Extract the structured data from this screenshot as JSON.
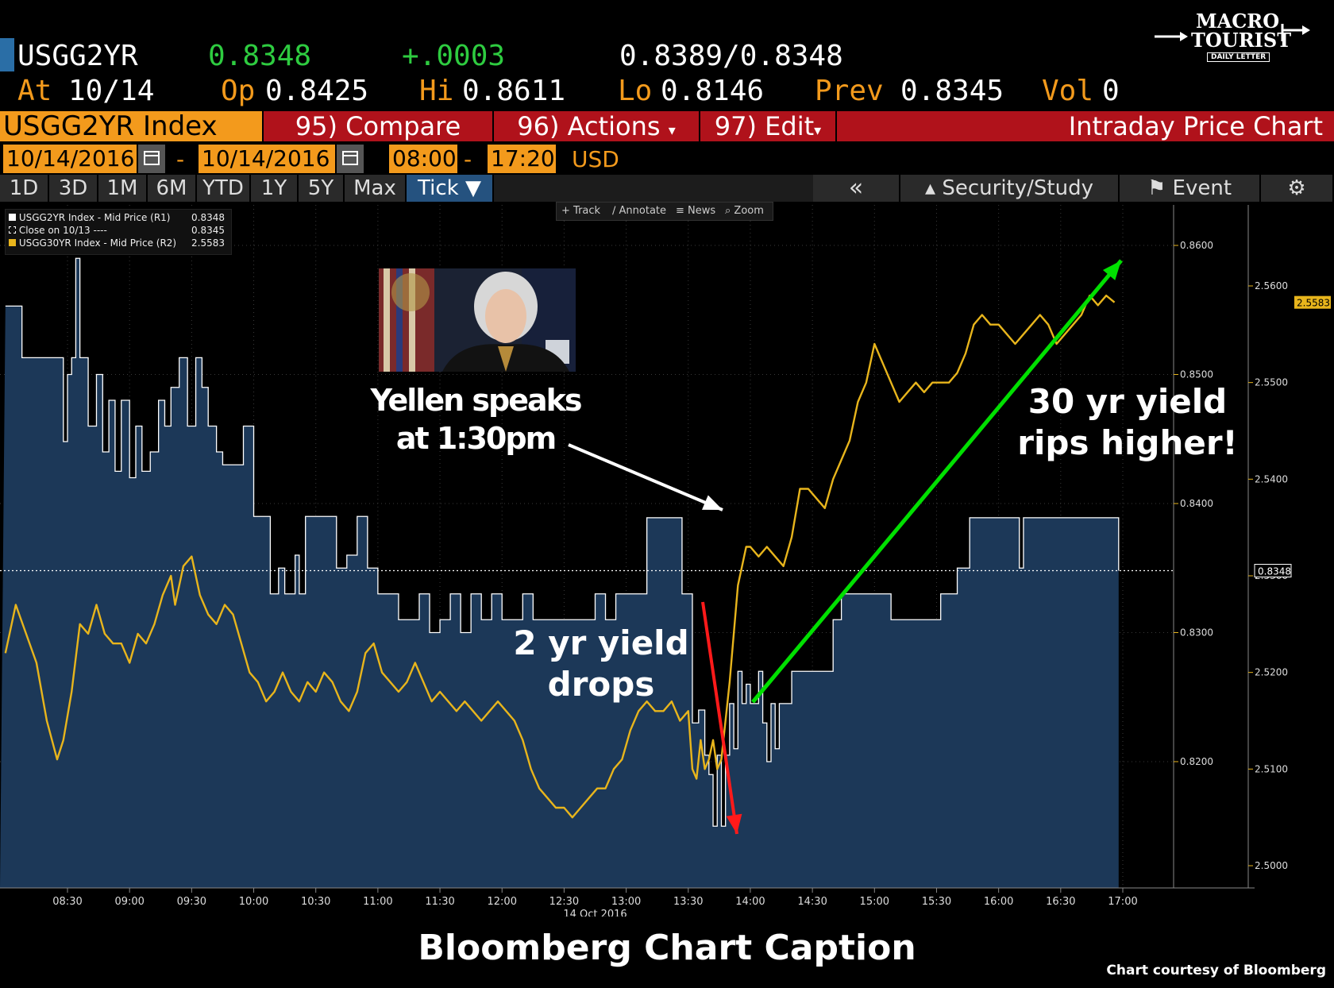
{
  "header": {
    "ticker": "USGG2YR",
    "last": "0.8348",
    "change": "+.0003",
    "bid_ask": "0.8389/0.8348",
    "at_label": "At",
    "at_value": "10/14",
    "op_label": "Op",
    "op_value": "0.8425",
    "hi_label": "Hi",
    "hi_value": "0.8611",
    "lo_label": "Lo",
    "lo_value": "0.8146",
    "prev_label": "Prev",
    "prev_value": "0.8345",
    "vol_label": "Vol",
    "vol_value": "0"
  },
  "logo": {
    "line1": "MACRO",
    "line2": "TOURIST",
    "line3": "DAILY LETTER"
  },
  "menubar": {
    "index": "USGG2YR Index",
    "compare": "95) Compare",
    "actions": "96) Actions",
    "edit": "97) Edit",
    "title": "Intraday Price Chart"
  },
  "range": {
    "start_date": "10/14/2016",
    "dash1": "-",
    "end_date": "10/14/2016",
    "start_time": "08:00",
    "dash2": "-",
    "end_time": "17:20",
    "currency": "USD"
  },
  "tabs": [
    "1D",
    "3D",
    "1M",
    "6M",
    "YTD",
    "1Y",
    "5Y",
    "Max",
    "Tick ▼"
  ],
  "tools": {
    "back": "«",
    "security": "Security/Study",
    "event": "Event"
  },
  "chart_toolbar": [
    "Track",
    "Annotate",
    "News",
    "Zoom"
  ],
  "legend": [
    {
      "label": "USGG2YR Index - Mid Price (R1)",
      "value": "0.8348"
    },
    {
      "label": "Close on 10/13 ----",
      "value": "0.8345"
    },
    {
      "label": "USGG30YR Index - Mid Price (R2)",
      "value": "2.5583"
    }
  ],
  "annotations": {
    "yellen": "Yellen speaks\nat 1:30pm",
    "two_yr": "2 yr yield\ndrops",
    "thirty_yr": "30 yr yield\nrips higher!"
  },
  "caption": "Bloomberg Chart Caption",
  "credit": "Chart courtesy of Bloomberg",
  "colors": {
    "area": "#1c3858",
    "line30": "#e8b51c",
    "orange": "#f39a1c",
    "red": "#b0121b",
    "green": "#00e000",
    "arrow_red": "#ff1a1a"
  },
  "chart_data": {
    "type": "area",
    "xlabel": "14 Oct 2016",
    "x_ticks": [
      "08:30",
      "09:00",
      "09:30",
      "10:00",
      "10:30",
      "11:00",
      "11:30",
      "12:00",
      "12:30",
      "13:00",
      "13:30",
      "14:00",
      "14:30",
      "15:00",
      "15:30",
      "16:00",
      "16:30",
      "17:00"
    ],
    "x_range": [
      "08:00",
      "17:20"
    ],
    "y1_ticks": [
      "0.8200",
      "0.8300",
      "0.8400",
      "0.8500",
      "0.8600"
    ],
    "y1_range": [
      0.8123,
      0.8673
    ],
    "y2_ticks": [
      "2.5000",
      "2.5100",
      "2.5200",
      "2.5300",
      "2.5400",
      "2.5500",
      "2.5600"
    ],
    "y2_range": [
      2.4993,
      2.563
    ],
    "last_y1_label": "0.8348",
    "last_y2_label": "2.5583",
    "series": [
      {
        "name": "USGG2YR Index - Mid Price (R1)",
        "axis": "right1",
        "points": [
          [
            "08:00",
            0.8553
          ],
          [
            "08:08",
            0.8553
          ],
          [
            "08:08",
            0.8513
          ],
          [
            "08:20",
            0.8513
          ],
          [
            "08:25",
            0.8513
          ],
          [
            "08:28",
            0.8448
          ],
          [
            "08:30",
            0.85
          ],
          [
            "08:32",
            0.8513
          ],
          [
            "08:34",
            0.859
          ],
          [
            "08:36",
            0.8513
          ],
          [
            "08:40",
            0.846
          ],
          [
            "08:44",
            0.85
          ],
          [
            "08:47",
            0.844
          ],
          [
            "08:50",
            0.848
          ],
          [
            "08:53",
            0.8425
          ],
          [
            "08:56",
            0.848
          ],
          [
            "09:00",
            0.842
          ],
          [
            "09:03",
            0.846
          ],
          [
            "09:06",
            0.8425
          ],
          [
            "09:10",
            0.844
          ],
          [
            "09:14",
            0.848
          ],
          [
            "09:17",
            0.846
          ],
          [
            "09:20",
            0.849
          ],
          [
            "09:24",
            0.8513
          ],
          [
            "09:28",
            0.846
          ],
          [
            "09:32",
            0.8513
          ],
          [
            "09:35",
            0.849
          ],
          [
            "09:38",
            0.846
          ],
          [
            "09:42",
            0.844
          ],
          [
            "09:45",
            0.843
          ],
          [
            "09:52",
            0.843
          ],
          [
            "09:55",
            0.846
          ],
          [
            "09:58",
            0.846
          ],
          [
            "10:00",
            0.839
          ],
          [
            "10:06",
            0.839
          ],
          [
            "10:08",
            0.833
          ],
          [
            "10:12",
            0.835
          ],
          [
            "10:15",
            0.833
          ],
          [
            "10:20",
            0.836
          ],
          [
            "10:22",
            0.833
          ],
          [
            "10:25",
            0.839
          ],
          [
            "10:30",
            0.839
          ],
          [
            "10:36",
            0.839
          ],
          [
            "10:40",
            0.835
          ],
          [
            "10:45",
            0.836
          ],
          [
            "10:50",
            0.839
          ],
          [
            "10:55",
            0.835
          ],
          [
            "11:00",
            0.833
          ],
          [
            "11:05",
            0.833
          ],
          [
            "11:10",
            0.831
          ],
          [
            "11:20",
            0.833
          ],
          [
            "11:25",
            0.83
          ],
          [
            "11:30",
            0.831
          ],
          [
            "11:35",
            0.833
          ],
          [
            "11:40",
            0.83
          ],
          [
            "11:45",
            0.833
          ],
          [
            "11:50",
            0.831
          ],
          [
            "11:55",
            0.833
          ],
          [
            "12:00",
            0.831
          ],
          [
            "12:05",
            0.831
          ],
          [
            "12:10",
            0.833
          ],
          [
            "12:15",
            0.831
          ],
          [
            "12:20",
            0.831
          ],
          [
            "12:40",
            0.831
          ],
          [
            "12:45",
            0.833
          ],
          [
            "12:50",
            0.831
          ],
          [
            "12:55",
            0.833
          ],
          [
            "13:00",
            0.833
          ],
          [
            "13:08",
            0.833
          ],
          [
            "13:10",
            0.8389
          ],
          [
            "13:15",
            0.8389
          ],
          [
            "13:26",
            0.8389
          ],
          [
            "13:27",
            0.833
          ],
          [
            "13:30",
            0.833
          ],
          [
            "13:32",
            0.823
          ],
          [
            "13:34",
            0.823
          ],
          [
            "13:35",
            0.824
          ],
          [
            "13:38",
            0.8205
          ],
          [
            "13:40",
            0.819
          ],
          [
            "13:42",
            0.815
          ],
          [
            "13:44",
            0.8205
          ],
          [
            "13:46",
            0.815
          ],
          [
            "13:48",
            0.8205
          ],
          [
            "13:50",
            0.8245
          ],
          [
            "13:52",
            0.821
          ],
          [
            "13:54",
            0.827
          ],
          [
            "13:56",
            0.8245
          ],
          [
            "13:58",
            0.826
          ],
          [
            "14:00",
            0.8245
          ],
          [
            "14:04",
            0.827
          ],
          [
            "14:06",
            0.823
          ],
          [
            "14:08",
            0.82
          ],
          [
            "14:10",
            0.8245
          ],
          [
            "14:12",
            0.821
          ],
          [
            "14:14",
            0.8245
          ],
          [
            "14:16",
            0.8245
          ],
          [
            "14:20",
            0.827
          ],
          [
            "14:30",
            0.827
          ],
          [
            "14:36",
            0.827
          ],
          [
            "14:40",
            0.831
          ],
          [
            "14:44",
            0.833
          ],
          [
            "14:52",
            0.833
          ],
          [
            "14:56",
            0.833
          ],
          [
            "15:00",
            0.833
          ],
          [
            "15:06",
            0.833
          ],
          [
            "15:08",
            0.831
          ],
          [
            "15:30",
            0.831
          ],
          [
            "15:32",
            0.833
          ],
          [
            "15:36",
            0.833
          ],
          [
            "15:40",
            0.835
          ],
          [
            "15:45",
            0.835
          ],
          [
            "15:46",
            0.8389
          ],
          [
            "16:00",
            0.8389
          ],
          [
            "16:08",
            0.8389
          ],
          [
            "16:10",
            0.835
          ],
          [
            "16:12",
            0.8389
          ],
          [
            "16:30",
            0.8389
          ],
          [
            "16:40",
            0.8389
          ],
          [
            "16:55",
            0.8389
          ],
          [
            "16:58",
            0.8348
          ]
        ]
      },
      {
        "name": "USGG30YR Index - Mid Price (R2)",
        "axis": "right2",
        "points": [
          [
            "08:00",
            2.522
          ],
          [
            "08:05",
            2.527
          ],
          [
            "08:10",
            2.524
          ],
          [
            "08:15",
            2.521
          ],
          [
            "08:20",
            2.515
          ],
          [
            "08:25",
            2.511
          ],
          [
            "08:28",
            2.513
          ],
          [
            "08:32",
            2.518
          ],
          [
            "08:36",
            2.525
          ],
          [
            "08:40",
            2.524
          ],
          [
            "08:44",
            2.527
          ],
          [
            "08:48",
            2.524
          ],
          [
            "08:52",
            2.523
          ],
          [
            "08:56",
            2.523
          ],
          [
            "09:00",
            2.521
          ],
          [
            "09:04",
            2.524
          ],
          [
            "09:08",
            2.523
          ],
          [
            "09:12",
            2.525
          ],
          [
            "09:16",
            2.528
          ],
          [
            "09:20",
            2.53
          ],
          [
            "09:22",
            2.527
          ],
          [
            "09:26",
            2.531
          ],
          [
            "09:30",
            2.532
          ],
          [
            "09:34",
            2.528
          ],
          [
            "09:38",
            2.526
          ],
          [
            "09:42",
            2.525
          ],
          [
            "09:46",
            2.527
          ],
          [
            "09:50",
            2.526
          ],
          [
            "09:54",
            2.523
          ],
          [
            "09:58",
            2.52
          ],
          [
            "10:02",
            2.519
          ],
          [
            "10:06",
            2.517
          ],
          [
            "10:10",
            2.518
          ],
          [
            "10:14",
            2.52
          ],
          [
            "10:18",
            2.518
          ],
          [
            "10:22",
            2.517
          ],
          [
            "10:26",
            2.519
          ],
          [
            "10:30",
            2.518
          ],
          [
            "10:34",
            2.52
          ],
          [
            "10:38",
            2.519
          ],
          [
            "10:42",
            2.517
          ],
          [
            "10:46",
            2.516
          ],
          [
            "10:50",
            2.518
          ],
          [
            "10:54",
            2.522
          ],
          [
            "10:58",
            2.523
          ],
          [
            "11:02",
            2.52
          ],
          [
            "11:06",
            2.519
          ],
          [
            "11:10",
            2.518
          ],
          [
            "11:14",
            2.519
          ],
          [
            "11:18",
            2.521
          ],
          [
            "11:22",
            2.519
          ],
          [
            "11:26",
            2.517
          ],
          [
            "11:30",
            2.518
          ],
          [
            "11:34",
            2.517
          ],
          [
            "11:38",
            2.516
          ],
          [
            "11:42",
            2.517
          ],
          [
            "11:46",
            2.516
          ],
          [
            "11:50",
            2.515
          ],
          [
            "11:54",
            2.516
          ],
          [
            "11:58",
            2.517
          ],
          [
            "12:02",
            2.516
          ],
          [
            "12:06",
            2.515
          ],
          [
            "12:10",
            2.513
          ],
          [
            "12:14",
            2.51
          ],
          [
            "12:18",
            2.508
          ],
          [
            "12:22",
            2.507
          ],
          [
            "12:26",
            2.506
          ],
          [
            "12:30",
            2.506
          ],
          [
            "12:34",
            2.505
          ],
          [
            "12:38",
            2.506
          ],
          [
            "12:42",
            2.507
          ],
          [
            "12:46",
            2.508
          ],
          [
            "12:50",
            2.508
          ],
          [
            "12:54",
            2.51
          ],
          [
            "12:58",
            2.511
          ],
          [
            "13:02",
            2.514
          ],
          [
            "13:06",
            2.516
          ],
          [
            "13:10",
            2.517
          ],
          [
            "13:14",
            2.516
          ],
          [
            "13:18",
            2.516
          ],
          [
            "13:22",
            2.517
          ],
          [
            "13:26",
            2.515
          ],
          [
            "13:30",
            2.516
          ],
          [
            "13:32",
            2.51
          ],
          [
            "13:34",
            2.509
          ],
          [
            "13:36",
            2.513
          ],
          [
            "13:38",
            2.51
          ],
          [
            "13:40",
            2.511
          ],
          [
            "13:42",
            2.513
          ],
          [
            "13:44",
            2.51
          ],
          [
            "13:46",
            2.511
          ],
          [
            "13:48",
            2.515
          ],
          [
            "13:50",
            2.519
          ],
          [
            "13:52",
            2.524
          ],
          [
            "13:54",
            2.529
          ],
          [
            "13:56",
            2.531
          ],
          [
            "13:58",
            2.533
          ],
          [
            "14:00",
            2.533
          ],
          [
            "14:04",
            2.532
          ],
          [
            "14:08",
            2.533
          ],
          [
            "14:12",
            2.532
          ],
          [
            "14:16",
            2.531
          ],
          [
            "14:20",
            2.534
          ],
          [
            "14:24",
            2.539
          ],
          [
            "14:28",
            2.539
          ],
          [
            "14:32",
            2.538
          ],
          [
            "14:36",
            2.537
          ],
          [
            "14:40",
            2.54
          ],
          [
            "14:44",
            2.542
          ],
          [
            "14:48",
            2.544
          ],
          [
            "14:52",
            2.548
          ],
          [
            "14:56",
            2.55
          ],
          [
            "15:00",
            2.554
          ],
          [
            "15:04",
            2.552
          ],
          [
            "15:08",
            2.55
          ],
          [
            "15:12",
            2.548
          ],
          [
            "15:16",
            2.549
          ],
          [
            "15:20",
            2.55
          ],
          [
            "15:24",
            2.549
          ],
          [
            "15:28",
            2.55
          ],
          [
            "15:32",
            2.55
          ],
          [
            "15:36",
            2.55
          ],
          [
            "15:40",
            2.551
          ],
          [
            "15:44",
            2.553
          ],
          [
            "15:48",
            2.556
          ],
          [
            "15:52",
            2.557
          ],
          [
            "15:56",
            2.556
          ],
          [
            "16:00",
            2.556
          ],
          [
            "16:04",
            2.555
          ],
          [
            "16:08",
            2.554
          ],
          [
            "16:12",
            2.555
          ],
          [
            "16:16",
            2.556
          ],
          [
            "16:20",
            2.557
          ],
          [
            "16:24",
            2.556
          ],
          [
            "16:28",
            2.554
          ],
          [
            "16:32",
            2.555
          ],
          [
            "16:36",
            2.556
          ],
          [
            "16:40",
            2.557
          ],
          [
            "16:44",
            2.559
          ],
          [
            "16:48",
            2.558
          ],
          [
            "16:52",
            2.559
          ],
          [
            "16:56",
            2.5583
          ]
        ]
      }
    ]
  }
}
